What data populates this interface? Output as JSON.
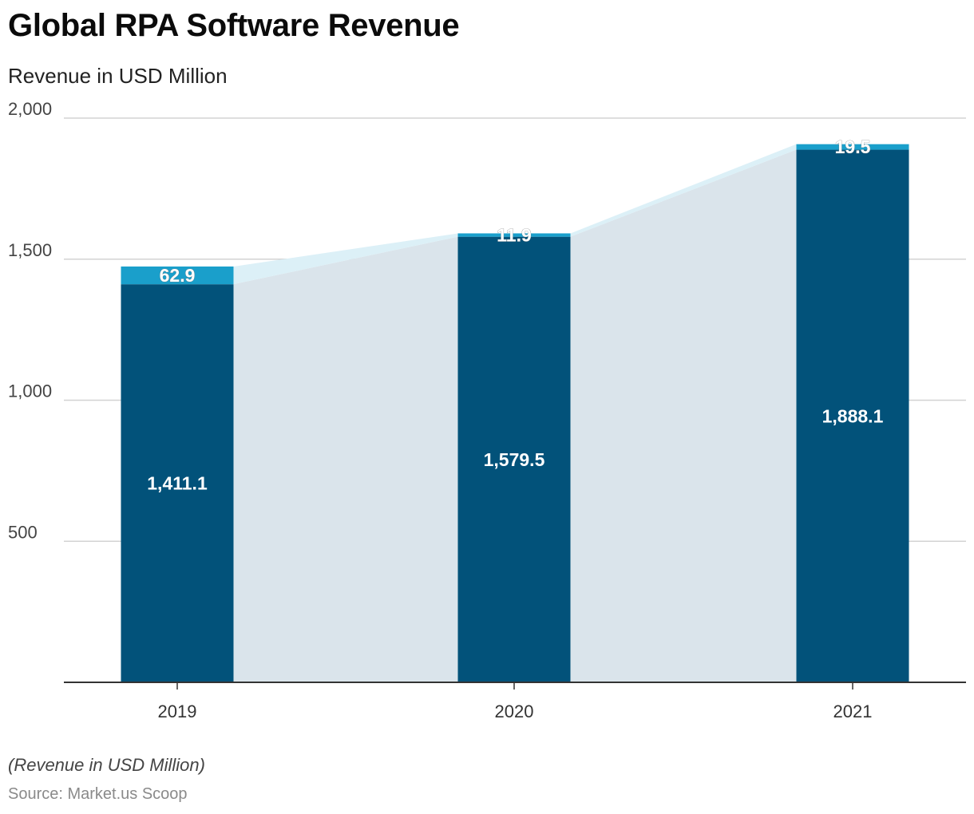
{
  "chart_data": {
    "type": "bar",
    "stacked": true,
    "title": "Global RPA Software Revenue",
    "subtitle": "Revenue in USD Million",
    "categories": [
      "2019",
      "2020",
      "2021"
    ],
    "series": [
      {
        "values": [
          1411.1,
          1579.5,
          1888.1
        ],
        "value_labels": [
          "1,411.1",
          "1,579.5",
          "1,888.1"
        ],
        "color": "#02527a"
      },
      {
        "values": [
          62.9,
          11.9,
          19.5
        ],
        "value_labels": [
          "62.9",
          "11.9",
          "19.5"
        ],
        "color": "#1a9fcb"
      }
    ],
    "ylim": [
      0,
      2000
    ],
    "yticks": [
      500,
      1000,
      1500,
      2000
    ],
    "ytick_labels": [
      "500",
      "1,000",
      "1,500",
      "2,000"
    ],
    "grid": true,
    "connector_area_colors": [
      "#dae4eb",
      "#dcf0f7"
    ]
  },
  "footer": {
    "note": "(Revenue in USD Million)",
    "source": "Source: Market.us Scoop"
  }
}
